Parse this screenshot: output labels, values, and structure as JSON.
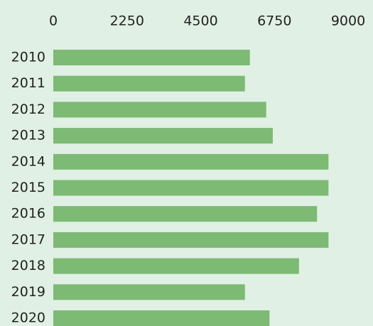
{
  "chart_data": {
    "type": "bar",
    "orientation": "horizontal",
    "categories": [
      "2010",
      "2011",
      "2012",
      "2013",
      "2014",
      "2015",
      "2016",
      "2017",
      "2018",
      "2019",
      "2020"
    ],
    "values": [
      6000,
      5850,
      6500,
      6700,
      8400,
      8400,
      8050,
      8400,
      7500,
      5850,
      6600
    ],
    "color": "#7dba74",
    "xlim": [
      0,
      9000
    ],
    "xticks": [
      0,
      2250,
      4500,
      6750,
      9000
    ],
    "grid": false
  }
}
